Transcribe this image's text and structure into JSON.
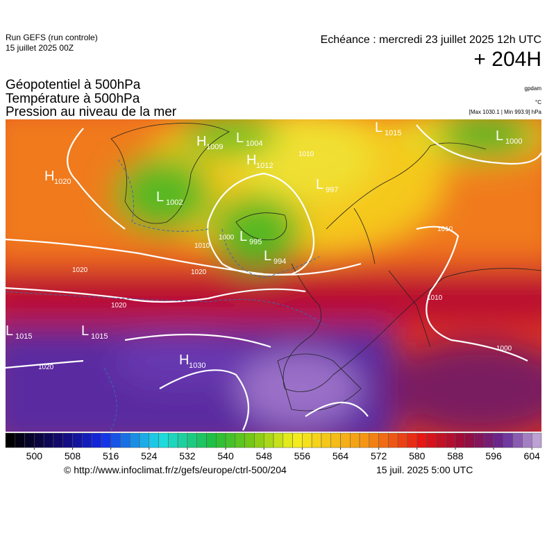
{
  "header": {
    "run": "Run GEFS (run controle)",
    "date": "15 juillet 2025 00Z",
    "echeance": "Echéance : mercredi 23 juillet 2025 12h UTC",
    "lead": "+ 204H"
  },
  "titles": [
    "Géopotentiel à 500hPa",
    "Température à 500hPa",
    "Pression au niveau de la mer"
  ],
  "units": {
    "geopotential": "gpdam",
    "temperature": "°C",
    "pressure": "[Max 1030.1 | Min 993.9] hPa"
  },
  "centers": [
    {
      "type": "H",
      "value": 1020
    },
    {
      "type": "H",
      "value": 1009
    },
    {
      "type": "L",
      "value": 1004
    },
    {
      "type": "H",
      "value": 1012
    },
    {
      "type": "L",
      "value": 1002
    },
    {
      "type": "L",
      "value": 997
    },
    {
      "type": "L",
      "value": 995
    },
    {
      "type": "L",
      "value": 994
    },
    {
      "type": "L",
      "value": 1015
    },
    {
      "type": "L",
      "value": 1000
    },
    {
      "type": "L",
      "value": 1015
    },
    {
      "type": "L",
      "value": 1015
    },
    {
      "type": "H",
      "value": 1030
    }
  ],
  "isobar_labels": [
    1010,
    1020,
    1000,
    1010,
    1020,
    1020,
    1020,
    1010,
    1010,
    1000
  ],
  "colorbar": {
    "ticks": [
      500,
      508,
      516,
      524,
      532,
      540,
      548,
      556,
      564,
      572,
      580,
      588,
      596,
      604
    ],
    "lim": [
      494,
      606
    ],
    "step": 2
  },
  "footer": {
    "url": "© http://www.infoclimat.fr/z/gefs/europe/ctrl-500/204",
    "stamp": "15 juil. 2025  5:00 UTC"
  }
}
